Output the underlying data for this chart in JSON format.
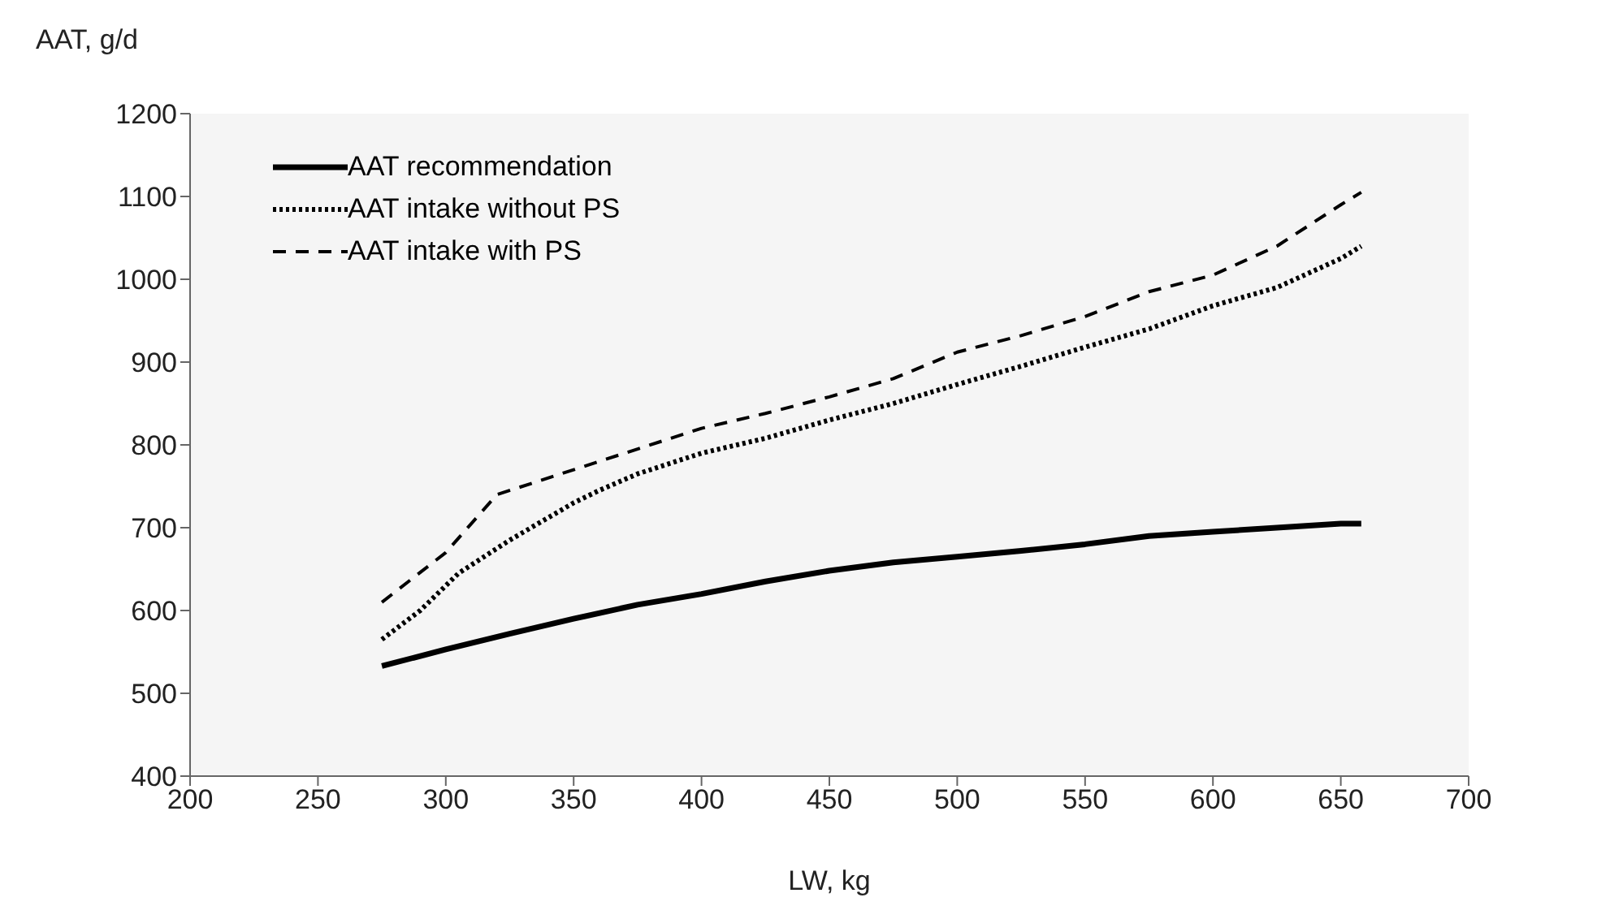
{
  "chart_data": {
    "type": "line",
    "xlabel": "LW, kg",
    "ylabel": "AAT, g/d",
    "xlim": [
      200,
      700
    ],
    "xticks": [
      200,
      250,
      300,
      350,
      400,
      450,
      500,
      550,
      600,
      650,
      700
    ],
    "ylim": [
      400,
      1200
    ],
    "yticks": [
      400,
      500,
      600,
      700,
      800,
      900,
      1000,
      1100,
      1200
    ],
    "legend": "top left",
    "grid": false,
    "series": [
      {
        "name": "AAT recommendation",
        "color": "#000000",
        "line_style": "solid",
        "x": [
          275,
          300,
          325,
          350,
          375,
          400,
          425,
          450,
          475,
          500,
          525,
          550,
          575,
          600,
          625,
          650,
          658
        ],
        "values": [
          533,
          553,
          572,
          590,
          607,
          620,
          635,
          648,
          658,
          665,
          672,
          680,
          690,
          695,
          700,
          705,
          705
        ]
      },
      {
        "name": "AAT intake without PS",
        "color": "#000000",
        "line_style": "dotted",
        "x": [
          275,
          290,
          300,
          305,
          325,
          350,
          360,
          375,
          400,
          425,
          450,
          475,
          500,
          525,
          550,
          575,
          600,
          625,
          650,
          658
        ],
        "values": [
          565,
          600,
          630,
          645,
          685,
          730,
          745,
          765,
          790,
          808,
          830,
          850,
          873,
          895,
          918,
          940,
          968,
          990,
          1025,
          1040
        ]
      },
      {
        "name": "AAT intake with PS",
        "color": "#000000",
        "line_style": "dashed",
        "x": [
          275,
          300,
          320,
          350,
          375,
          400,
          425,
          450,
          475,
          500,
          525,
          550,
          575,
          600,
          625,
          650,
          658
        ],
        "values": [
          610,
          670,
          740,
          770,
          795,
          820,
          838,
          858,
          880,
          912,
          932,
          955,
          985,
          1005,
          1040,
          1090,
          1105
        ]
      }
    ]
  }
}
